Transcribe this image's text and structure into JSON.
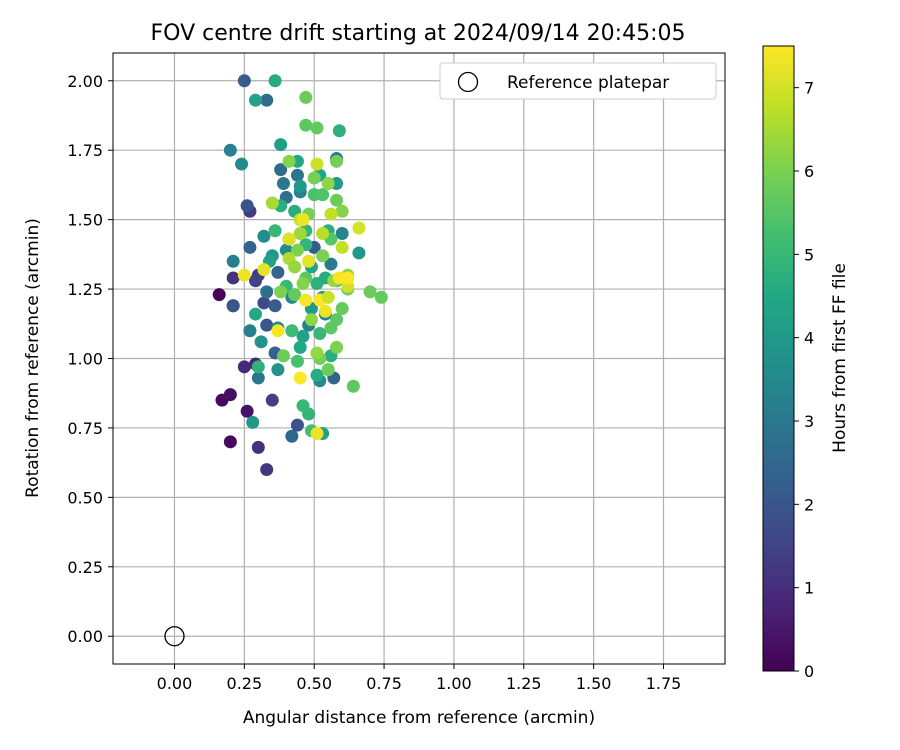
{
  "chart_data": {
    "type": "scatter",
    "title": "FOV centre drift starting at 2024/09/14 20:45:05",
    "xlabel": "Angular distance from reference (arcmin)",
    "ylabel": "Rotation from reference (arcmin)",
    "xlim": [
      -0.22,
      1.97
    ],
    "ylim": [
      -0.1,
      2.1
    ],
    "xticks": [
      "0.00",
      "0.25",
      "0.50",
      "0.75",
      "1.00",
      "1.25",
      "1.50",
      "1.75"
    ],
    "yticks": [
      "0.00",
      "0.25",
      "0.50",
      "0.75",
      "1.00",
      "1.25",
      "1.50",
      "1.75",
      "2.00"
    ],
    "grid": true,
    "legend_position": "top-right",
    "colormap": "viridis",
    "colorbar": {
      "label": "Hours from first FF file",
      "min": 0,
      "max": 7.5,
      "ticks": [
        "0",
        "1",
        "2",
        "3",
        "4",
        "5",
        "6",
        "7"
      ]
    },
    "reference": {
      "name": "Reference platepar",
      "x": 0.0,
      "y": 0.0
    },
    "points": [
      [
        0.16,
        1.23,
        0.1
      ],
      [
        0.17,
        0.85,
        0.2
      ],
      [
        0.2,
        0.87,
        0.3
      ],
      [
        0.2,
        0.7,
        0.2
      ],
      [
        0.21,
        1.19,
        0.6
      ],
      [
        0.21,
        1.29,
        1.1
      ],
      [
        0.25,
        0.97,
        0.9
      ],
      [
        0.26,
        0.81,
        0.4
      ],
      [
        0.27,
        1.53,
        1.3
      ],
      [
        0.3,
        0.68,
        1.0
      ],
      [
        0.33,
        0.6,
        1.2
      ],
      [
        0.35,
        0.85,
        1.4
      ],
      [
        0.29,
        0.98,
        0.8
      ],
      [
        0.26,
        1.55,
        1.9
      ],
      [
        0.27,
        1.4,
        2.4
      ],
      [
        0.21,
        1.19,
        2.0
      ],
      [
        0.25,
        2.0,
        2.2
      ],
      [
        0.33,
        1.93,
        2.6
      ],
      [
        0.32,
        1.2,
        1.7
      ],
      [
        0.3,
        1.3,
        1.3
      ],
      [
        0.29,
        1.28,
        1.5
      ],
      [
        0.33,
        1.12,
        2.0
      ],
      [
        0.42,
        0.72,
        2.5
      ],
      [
        0.44,
        0.76,
        1.9
      ],
      [
        0.27,
        1.1,
        3.2
      ],
      [
        0.3,
        0.93,
        2.9
      ],
      [
        0.36,
        1.02,
        2.3
      ],
      [
        0.37,
        1.31,
        2.4
      ],
      [
        0.38,
        1.68,
        2.6
      ],
      [
        0.4,
        1.58,
        2.8
      ],
      [
        0.44,
        1.66,
        2.9
      ],
      [
        0.39,
        1.63,
        3.0
      ],
      [
        0.33,
        1.24,
        2.7
      ],
      [
        0.36,
        1.19,
        2.2
      ],
      [
        0.5,
        1.4,
        2.1
      ],
      [
        0.57,
        0.93,
        2.4
      ],
      [
        0.21,
        1.35,
        3.2
      ],
      [
        0.2,
        1.75,
        3.3
      ],
      [
        0.24,
        1.7,
        3.6
      ],
      [
        0.28,
        0.77,
        4.0
      ],
      [
        0.32,
        1.44,
        3.6
      ],
      [
        0.37,
        1.11,
        3.4
      ],
      [
        0.37,
        0.96,
        3.8
      ],
      [
        0.42,
        1.22,
        3.5
      ],
      [
        0.48,
        1.12,
        3.2
      ],
      [
        0.52,
        0.92,
        3.5
      ],
      [
        0.54,
        1.16,
        3.3
      ],
      [
        0.56,
        1.34,
        3.1
      ],
      [
        0.58,
        1.72,
        3.0
      ],
      [
        0.6,
        1.45,
        3.4
      ],
      [
        0.4,
        1.39,
        3.6
      ],
      [
        0.45,
        1.6,
        3.2
      ],
      [
        0.31,
        1.06,
        3.8
      ],
      [
        0.66,
        1.38,
        3.9
      ],
      [
        0.29,
        1.93,
        4.3
      ],
      [
        0.36,
        2.0,
        4.6
      ],
      [
        0.38,
        1.77,
        4.2
      ],
      [
        0.44,
        1.71,
        4.5
      ],
      [
        0.59,
        1.82,
        4.8
      ],
      [
        0.52,
        1.66,
        4.4
      ],
      [
        0.58,
        1.63,
        4.1
      ],
      [
        0.46,
        1.08,
        4.3
      ],
      [
        0.3,
        0.97,
        4.8
      ],
      [
        0.29,
        1.16,
        4.5
      ],
      [
        0.35,
        1.37,
        4.0
      ],
      [
        0.38,
        1.55,
        4.7
      ],
      [
        0.41,
        1.43,
        4.2
      ],
      [
        0.43,
        1.53,
        4.6
      ],
      [
        0.45,
        1.62,
        4.0
      ],
      [
        0.47,
        1.46,
        4.9
      ],
      [
        0.49,
        1.33,
        4.4
      ],
      [
        0.51,
        1.27,
        4.8
      ],
      [
        0.53,
        1.22,
        4.1
      ],
      [
        0.55,
        1.46,
        4.7
      ],
      [
        0.45,
        1.04,
        4.5
      ],
      [
        0.49,
        1.18,
        4.0
      ],
      [
        0.51,
        0.94,
        4.6
      ],
      [
        0.53,
        0.73,
        4.2
      ],
      [
        0.48,
        0.8,
        4.9
      ],
      [
        0.46,
        0.83,
        5.0
      ],
      [
        0.49,
        0.74,
        5.2
      ],
      [
        0.4,
        1.26,
        5.0
      ],
      [
        0.42,
        1.1,
        5.1
      ],
      [
        0.44,
        0.99,
        5.3
      ],
      [
        0.47,
        1.41,
        4.9
      ],
      [
        0.5,
        1.59,
        5.3
      ],
      [
        0.52,
        1.09,
        5.0
      ],
      [
        0.54,
        1.29,
        4.6
      ],
      [
        0.56,
        1.01,
        4.7
      ],
      [
        0.58,
        1.28,
        5.1
      ],
      [
        0.36,
        1.46,
        5.0
      ],
      [
        0.34,
        1.35,
        4.3
      ],
      [
        0.47,
        1.84,
        5.6
      ],
      [
        0.47,
        1.94,
        5.8
      ],
      [
        0.51,
        1.83,
        5.7
      ],
      [
        0.58,
        1.71,
        5.9
      ],
      [
        0.53,
        1.59,
        5.4
      ],
      [
        0.47,
        1.29,
        5.6
      ],
      [
        0.56,
        1.43,
        5.5
      ],
      [
        0.58,
        1.14,
        5.6
      ],
      [
        0.58,
        1.57,
        5.8
      ],
      [
        0.6,
        1.18,
        5.7
      ],
      [
        0.62,
        1.25,
        5.9
      ],
      [
        0.64,
        0.9,
        5.6
      ],
      [
        0.7,
        1.24,
        5.8
      ],
      [
        0.74,
        1.22,
        5.7
      ],
      [
        0.52,
        1.0,
        5.9
      ],
      [
        0.55,
        0.96,
        5.8
      ],
      [
        0.58,
        1.04,
        6.0
      ],
      [
        0.56,
        1.11,
        5.6
      ],
      [
        0.5,
        1.65,
        5.9
      ],
      [
        0.48,
        1.52,
        5.9
      ],
      [
        0.44,
        1.39,
        6.0
      ],
      [
        0.41,
        1.71,
        6.1
      ],
      [
        0.39,
        1.01,
        5.8
      ],
      [
        0.43,
        1.23,
        5.7
      ],
      [
        0.46,
        1.27,
        6.1
      ],
      [
        0.53,
        1.37,
        6.0
      ],
      [
        0.55,
        1.63,
        6.2
      ],
      [
        0.6,
        1.53,
        6.1
      ],
      [
        0.62,
        1.3,
        6.2
      ],
      [
        0.57,
        1.28,
        6.3
      ],
      [
        0.45,
        1.45,
        6.4
      ],
      [
        0.49,
        1.14,
        6.2
      ],
      [
        0.51,
        1.02,
        6.3
      ],
      [
        0.35,
        1.56,
        6.5
      ],
      [
        0.41,
        1.36,
        6.6
      ],
      [
        0.45,
        1.5,
        6.8
      ],
      [
        0.51,
        1.7,
        6.9
      ],
      [
        0.53,
        1.45,
        6.7
      ],
      [
        0.56,
        1.52,
        6.8
      ],
      [
        0.62,
        1.26,
        7.0
      ],
      [
        0.66,
        1.47,
        7.0
      ],
      [
        0.25,
        1.3,
        7.3
      ],
      [
        0.32,
        1.32,
        7.2
      ],
      [
        0.37,
        1.1,
        7.4
      ],
      [
        0.41,
        1.43,
        7.1
      ],
      [
        0.45,
        0.93,
        7.5
      ],
      [
        0.46,
        1.5,
        7.3
      ],
      [
        0.47,
        1.21,
        7.4
      ],
      [
        0.48,
        1.35,
        7.2
      ],
      [
        0.51,
        0.73,
        7.3
      ],
      [
        0.52,
        1.21,
        7.5
      ],
      [
        0.54,
        1.17,
        7.3
      ],
      [
        0.59,
        1.29,
        7.4
      ],
      [
        0.62,
        1.29,
        7.5
      ],
      [
        0.55,
        1.22,
        6.9
      ],
      [
        0.6,
        1.4,
        6.8
      ],
      [
        0.43,
        1.33,
        6.3
      ],
      [
        0.38,
        1.24,
        6.0
      ]
    ]
  }
}
